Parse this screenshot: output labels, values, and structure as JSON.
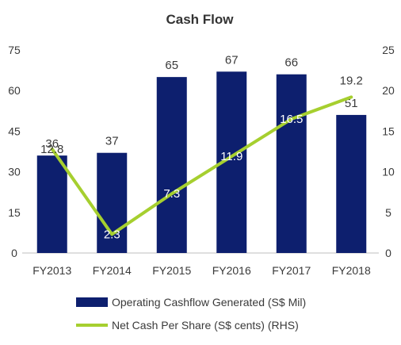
{
  "chart_data": {
    "type": "bar",
    "title": "Cash Flow",
    "categories": [
      "FY2013",
      "FY2014",
      "FY2015",
      "FY2016",
      "FY2017",
      "FY2018"
    ],
    "series": [
      {
        "name": "Operating Cashflow Generated (S$ Mil)",
        "kind": "bar",
        "axis": "left",
        "values": [
          36,
          37,
          65,
          67,
          66,
          51
        ],
        "labels": [
          "36",
          "37",
          "65",
          "67",
          "66",
          "51"
        ],
        "color": "#0d1f6e"
      },
      {
        "name": "Net Cash Per Share (S$ cents) (RHS)",
        "kind": "line",
        "axis": "right",
        "values": [
          12.8,
          2.3,
          7.3,
          11.9,
          16.5,
          19.2
        ],
        "labels": [
          "12.8",
          "2.3",
          "7.3",
          "11.9",
          "16.5",
          "19.2"
        ],
        "color": "#a6cf2f"
      }
    ],
    "y_left": {
      "lim": [
        0,
        75
      ],
      "ticks": [
        "0",
        "15",
        "30",
        "45",
        "60",
        "75"
      ]
    },
    "y_right": {
      "lim": [
        0,
        25
      ],
      "ticks": [
        "0",
        "5",
        "10",
        "15",
        "20",
        "25"
      ]
    },
    "grid": false,
    "legend": "bottom"
  }
}
